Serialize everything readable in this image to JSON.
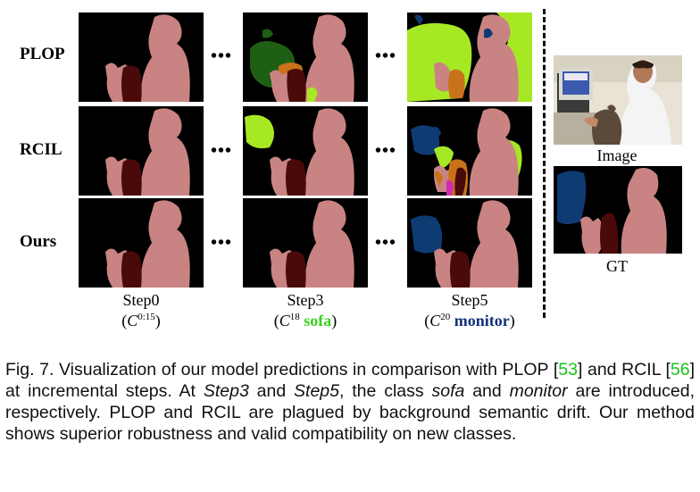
{
  "rows": [
    "PLOP",
    "RCIL",
    "Ours"
  ],
  "ellipsis": "•••",
  "steps": [
    {
      "label": "Step0",
      "cls_prefix": "(",
      "cls_C": "C",
      "cls_sup": "0:15",
      "cls_name": "",
      "cls_suffix": ")"
    },
    {
      "label": "Step3",
      "cls_prefix": "(",
      "cls_C": "C",
      "cls_sup": "18",
      "cls_name": "sofa",
      "cls_suffix": ")"
    },
    {
      "label": "Step5",
      "cls_prefix": "(",
      "cls_C": "C",
      "cls_sup": "20",
      "cls_name": "monitor",
      "cls_suffix": ")"
    }
  ],
  "side": {
    "image_label": "Image",
    "gt_label": "GT"
  },
  "caption": {
    "p1": "Fig. 7. Visualization of our model predictions in comparison with PLOP [",
    "ref1": "53",
    "p2": "] and RCIL [",
    "ref2": "56",
    "p3": "] at incremental steps. At ",
    "step3": "Step3",
    "p4": " and ",
    "step5": "Step5",
    "p5": ", the class ",
    "sofa": "sofa",
    "p6": " and ",
    "monitor": "monitor",
    "p7": " are introduced, respectively. PLOP and RCIL are plagued by background semantic drift. Our method shows superior robustness and valid compatibility on new classes."
  },
  "colors": {
    "person": "#c98383",
    "cat": "#4a0a0a",
    "sofa_green": "#a7e824",
    "dark_green": "#1f5f14",
    "monitor_blue": "#0f3b73",
    "orange": "#c8731a",
    "magenta": "#d22ab4"
  }
}
